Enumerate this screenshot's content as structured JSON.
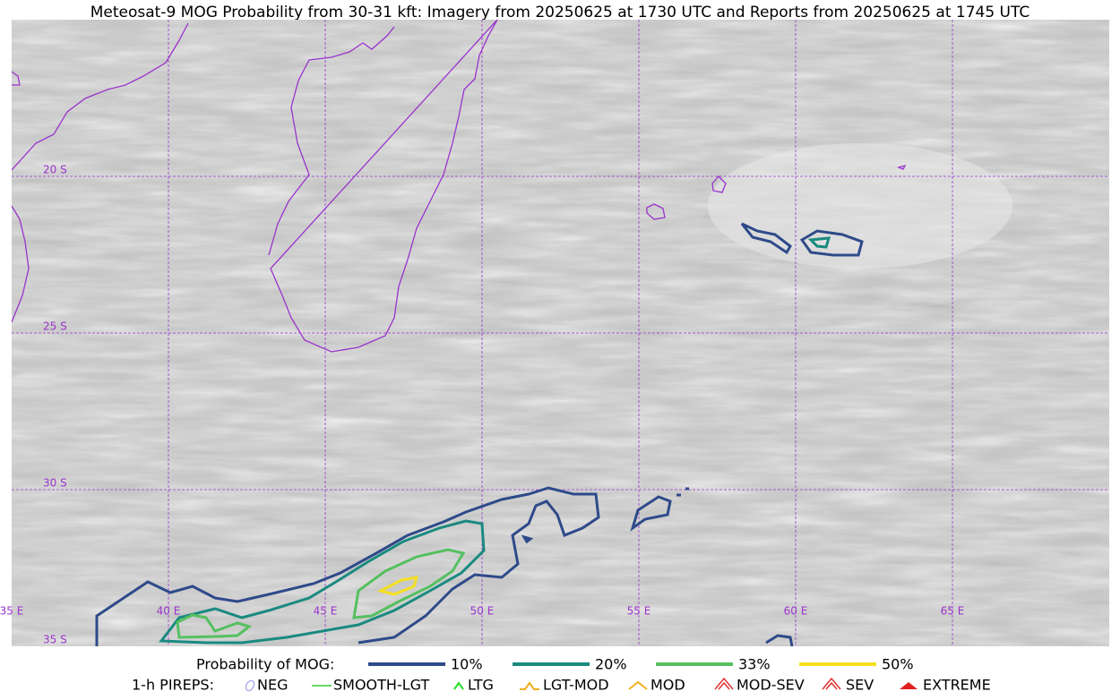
{
  "title": "Meteosat-9 MOG Probability from 30-31 kft: Imagery from 20250625 at 1730 UTC and Reports from 20250625 at 1745 UTC",
  "map": {
    "lat_labels": [
      "20 S",
      "25 S",
      "30 S",
      "35 S"
    ],
    "lon_labels": [
      "35 E",
      "40 E",
      "45 E",
      "50 E",
      "55 E",
      "60 E",
      "65 E"
    ]
  },
  "legend": {
    "probability": {
      "label": "Probability of MOG:",
      "items": [
        "10%",
        "20%",
        "33%",
        "50%"
      ]
    },
    "pireps": {
      "label": "1-h PIREPS:",
      "items": [
        "NEG",
        "SMOOTH-LGT",
        "LTG",
        "LGT-MOD",
        "MOD",
        "MOD-SEV",
        "SEV",
        "EXTREME"
      ]
    }
  }
}
